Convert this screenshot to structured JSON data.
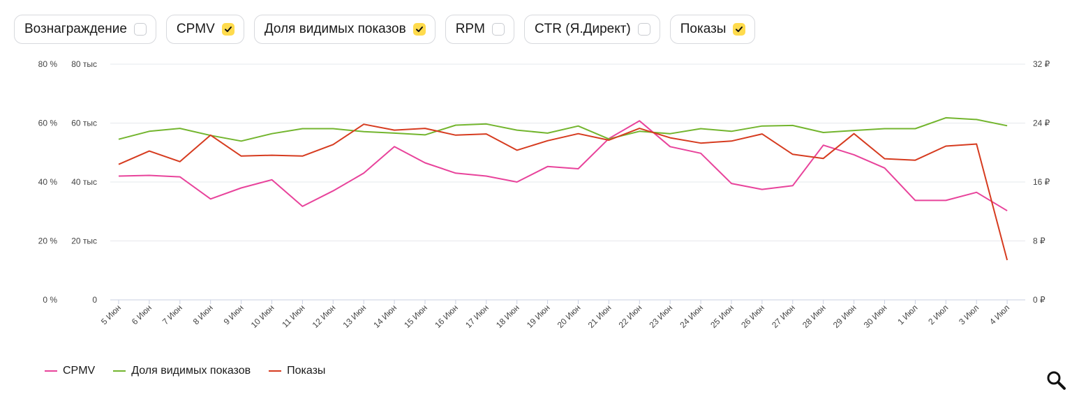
{
  "toggles": [
    {
      "label": "Вознаграждение",
      "checked": false
    },
    {
      "label": "CPMV",
      "checked": true
    },
    {
      "label": "Доля видимых показов",
      "checked": true
    },
    {
      "label": "RPM",
      "checked": false
    },
    {
      "label": "CTR (Я.Директ)",
      "checked": false
    },
    {
      "label": "Показы",
      "checked": true
    }
  ],
  "chart_data": {
    "type": "line",
    "categories": [
      "5 Июн",
      "6 Июн",
      "7 Июн",
      "8 Июн",
      "9 Июн",
      "10 Июн",
      "11 Июн",
      "12 Июн",
      "13 Июн",
      "14 Июн",
      "15 Июн",
      "16 Июн",
      "17 Июн",
      "18 Июн",
      "19 Июн",
      "20 Июн",
      "21 Июн",
      "22 Июн",
      "23 Июн",
      "24 Июн",
      "25 Июн",
      "26 Июн",
      "27 Июн",
      "28 Июн",
      "29 Июн",
      "30 Июн",
      "1 Июл",
      "2 Июл",
      "3 Июл",
      "4 Июл"
    ],
    "axes": {
      "left_percent": {
        "ylim": [
          0,
          80
        ],
        "ticks": [
          "0 %",
          "20 %",
          "40 %",
          "60 %",
          "80 %"
        ]
      },
      "left_count": {
        "ylim": [
          0,
          80000
        ],
        "ticks": [
          "0",
          "20 тыс",
          "40 тыс",
          "60 тыс",
          "80 тыс"
        ]
      },
      "right_rub": {
        "ylim": [
          0,
          32
        ],
        "ticks": [
          "0 ₽",
          "8 ₽",
          "16 ₽",
          "24 ₽",
          "32 ₽"
        ]
      }
    },
    "grid": true,
    "legend_position": "bottom-left",
    "series": [
      {
        "name": "CPMV",
        "axis": "right_rub",
        "color": "#e8439b",
        "values": [
          16.8,
          16.9,
          16.7,
          13.7,
          15.2,
          16.3,
          12.7,
          14.8,
          17.2,
          20.8,
          18.6,
          17.2,
          16.8,
          16.0,
          18.1,
          17.8,
          21.9,
          24.3,
          20.8,
          19.9,
          15.8,
          15.0,
          15.5,
          21.0,
          19.7,
          17.9,
          13.5,
          13.5,
          14.6,
          12.1
        ]
      },
      {
        "name": "Доля видимых показов",
        "axis": "left_percent",
        "color": "#73b52e",
        "values": [
          54.5,
          57.2,
          58.2,
          55.8,
          53.9,
          56.4,
          58.1,
          58.1,
          57.1,
          56.6,
          56.0,
          59.3,
          59.7,
          57.6,
          56.6,
          59.0,
          54.6,
          57.2,
          56.4,
          58.1,
          57.2,
          59.0,
          59.2,
          56.8,
          57.5,
          58.1,
          58.1,
          61.8,
          61.2,
          59.1
        ]
      },
      {
        "name": "Показы",
        "axis": "left_count",
        "color": "#d63b1f",
        "values": [
          46000,
          50500,
          46900,
          55900,
          48800,
          49100,
          48800,
          52700,
          59600,
          57600,
          58200,
          55900,
          56300,
          50800,
          54000,
          56400,
          54200,
          58200,
          55000,
          53200,
          53900,
          56300,
          49400,
          48000,
          56400,
          47900,
          47400,
          52200,
          52900,
          13500
        ]
      }
    ]
  },
  "zoom_icon": "magnifier-icon"
}
